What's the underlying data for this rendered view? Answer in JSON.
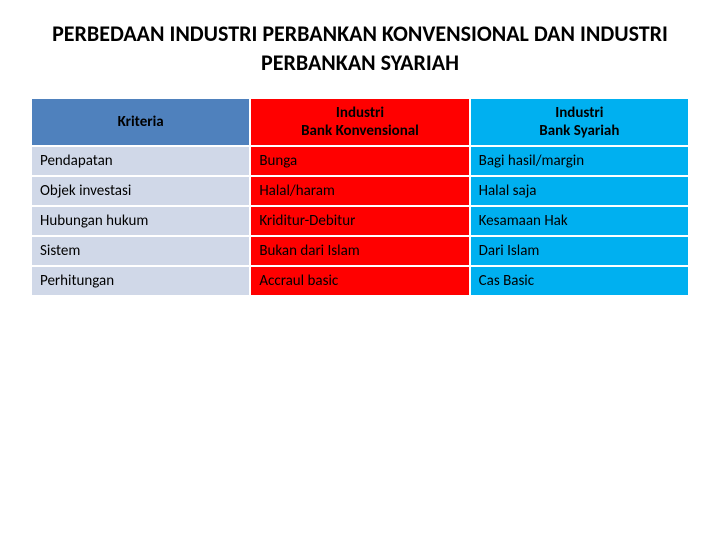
{
  "title": "PERBEDAAN INDUSTRI PERBANKAN KONVENSIONAL DAN INDUSTRI PERBANKAN SYARIAH",
  "table": {
    "type": "table",
    "header_bg_colors": [
      "#4f81bd",
      "#ff0000",
      "#00b0f0"
    ],
    "body_bg_colors": [
      "#d0d8e8",
      "#ff0000",
      "#00b0f0"
    ],
    "text_color": "#000000",
    "border_color": "#ffffff",
    "font_size": 15,
    "columns": [
      {
        "label": "Kriteria",
        "width": "33%"
      },
      {
        "label_line1": "Industri",
        "label_line2": "Bank Konvensional",
        "width": "33%"
      },
      {
        "label_line1": "Industri",
        "label_line2": "Bank Syariah",
        "width": "33%"
      }
    ],
    "rows": [
      {
        "kriteria": "Pendapatan",
        "konv": "Bunga",
        "syariah": "Bagi hasil/margin"
      },
      {
        "kriteria": "Objek investasi",
        "konv": "Halal/haram",
        "syariah": "Halal saja"
      },
      {
        "kriteria": "Hubungan hukum",
        "konv": "Kriditur-Debitur",
        "syariah": "Kesamaan Hak"
      },
      {
        "kriteria": "Sistem",
        "konv": "Bukan dari Islam",
        "syariah": "Dari Islam"
      },
      {
        "kriteria": "Perhitungan",
        "konv": "Accraul basic",
        "syariah": "Cas Basic"
      }
    ]
  }
}
